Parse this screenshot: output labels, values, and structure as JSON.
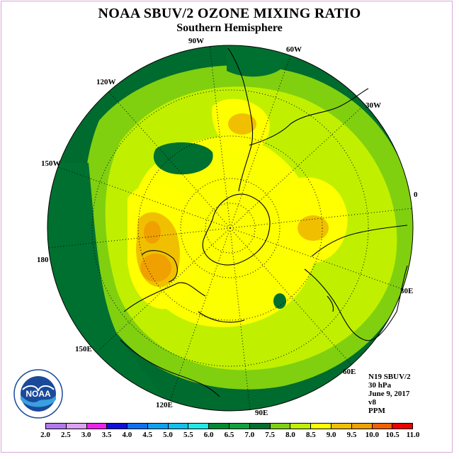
{
  "title": "NOAA SBUV/2 OZONE MIXING RATIO",
  "subtitle": "Southern Hemisphere",
  "longitude_labels": [
    "90W",
    "60W",
    "30W",
    "0",
    "30E",
    "60E",
    "90E",
    "120E",
    "150E",
    "180",
    "150W",
    "120W"
  ],
  "info": {
    "instrument": "N19 SBUV/2",
    "level": "30 hPa",
    "date": "June 9, 2017",
    "version": "v8",
    "units": "PPM"
  },
  "logo": {
    "text": "NOAA",
    "icon": "noaa-logo-icon"
  },
  "colorbar": {
    "ticks": [
      "2.0",
      "2.5",
      "3.0",
      "3.5",
      "4.0",
      "4.5",
      "5.0",
      "5.5",
      "6.0",
      "6.5",
      "7.0",
      "7.5",
      "8.0",
      "8.5",
      "9.0",
      "9.5",
      "10.0",
      "10.5",
      "11.0"
    ],
    "colors": [
      "#b07aee",
      "#dea0f0",
      "#ee22ee",
      "#1010dd",
      "#1070f0",
      "#10a0f0",
      "#10c0ee",
      "#20e8e8",
      "#008b32",
      "#10a040",
      "#007030",
      "#80d010",
      "#c0f000",
      "#ffff00",
      "#f0c000",
      "#f0a000",
      "#f06000",
      "#ee0000",
      "#8b5030"
    ]
  }
}
